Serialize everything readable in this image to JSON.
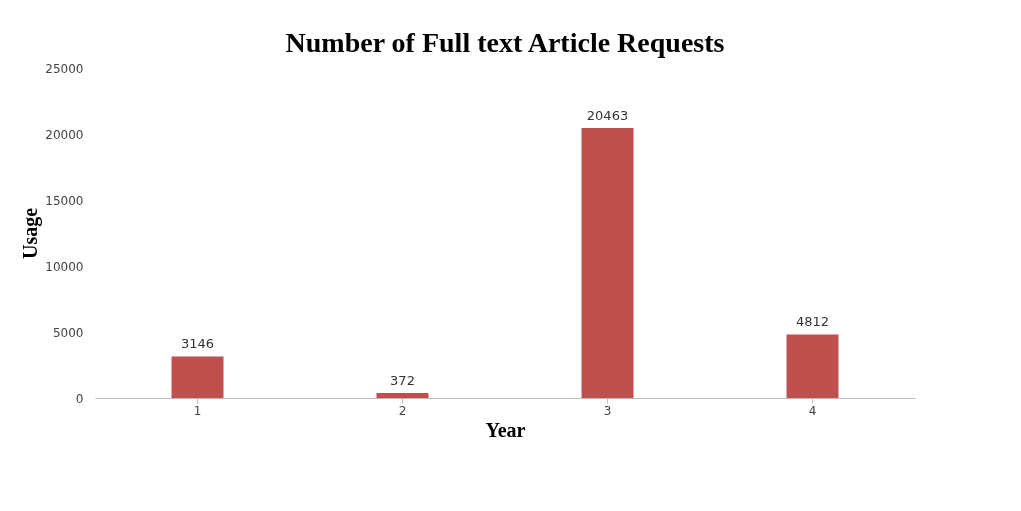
{
  "chart_data": {
    "type": "bar",
    "title": "Number of Full text Article Requests",
    "xlabel": "Year",
    "ylabel": "Usage",
    "categories": [
      "1",
      "2",
      "3",
      "4"
    ],
    "values": [
      3146,
      372,
      20463,
      4812
    ],
    "color": "#c0504d",
    "ylim": [
      0,
      25000
    ],
    "yticks": [
      0,
      5000,
      10000,
      15000,
      20000,
      25000
    ],
    "grid": false,
    "data_labels": true
  }
}
